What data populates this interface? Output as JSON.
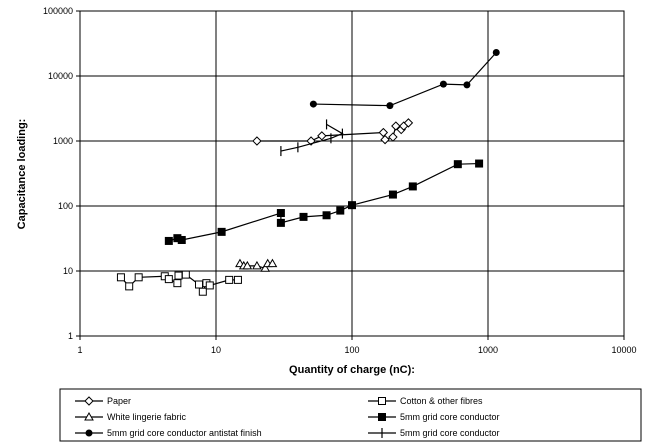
{
  "chart_data": {
    "type": "scatter",
    "x_scale": "log",
    "y_scale": "log",
    "xlim": [
      1,
      10000
    ],
    "ylim": [
      1,
      100000
    ],
    "x_ticks": [
      "1",
      "10",
      "100",
      "1000",
      "10000"
    ],
    "y_ticks": [
      "1",
      "10",
      "100",
      "1000",
      "10000",
      "100000"
    ],
    "xlabel": "Quantity of charge (nC):",
    "ylabel": "Capacitance loading:",
    "grid": "major",
    "legend_position": "bottom",
    "series": [
      {
        "name": "Paper",
        "marker": "diamond-open",
        "color": "#000000",
        "points": [
          [
            20,
            1000
          ],
          [
            50,
            1000
          ],
          [
            60,
            1200
          ],
          [
            170,
            1350
          ],
          [
            175,
            1050
          ],
          [
            200,
            1150
          ],
          [
            210,
            1700
          ],
          [
            230,
            1500
          ],
          [
            240,
            1700
          ],
          [
            260,
            1900
          ]
        ]
      },
      {
        "name": "Cotton & other fibres",
        "marker": "square-open",
        "color": "#000000",
        "points": [
          [
            2,
            8
          ],
          [
            2.3,
            5.8
          ],
          [
            2.7,
            8
          ],
          [
            4.2,
            8.3
          ],
          [
            4.5,
            7.5
          ],
          [
            5.2,
            6.5
          ],
          [
            5.3,
            8.5
          ],
          [
            6,
            8.8
          ],
          [
            7.5,
            6.2
          ],
          [
            8,
            4.8
          ],
          [
            8.5,
            6.5
          ],
          [
            9,
            6
          ],
          [
            12.5,
            7.3
          ],
          [
            14.5,
            7.3
          ]
        ]
      },
      {
        "name": "White lingerie fabric",
        "marker": "triangle-open",
        "color": "#000000",
        "points": [
          [
            15,
            13
          ],
          [
            16,
            12
          ],
          [
            17,
            12
          ],
          [
            20,
            12
          ],
          [
            23,
            11
          ],
          [
            24,
            13
          ],
          [
            26,
            13
          ]
        ]
      },
      {
        "name": "5mm grid core conductor",
        "marker": "square-filled",
        "color": "#000000",
        "points": [
          [
            4.5,
            29
          ],
          [
            5.2,
            32
          ],
          [
            5.6,
            30
          ],
          [
            11,
            40
          ],
          [
            30,
            78
          ],
          [
            30,
            55
          ],
          [
            44,
            68
          ],
          [
            65,
            72
          ],
          [
            82,
            85
          ],
          [
            100,
            103
          ],
          [
            200,
            150
          ],
          [
            280,
            200
          ],
          [
            600,
            440
          ],
          [
            860,
            450
          ]
        ]
      },
      {
        "name": "5mm grid core conductor antistat finish",
        "marker": "circle-filled",
        "color": "#000000",
        "points": [
          [
            52,
            3700
          ],
          [
            190,
            3500
          ],
          [
            470,
            7500
          ],
          [
            700,
            7300
          ],
          [
            1150,
            23000
          ]
        ]
      },
      {
        "name": "5mm grid core conductor",
        "marker": "dash",
        "color": "#000000",
        "points": [
          [
            30,
            700
          ],
          [
            40,
            800
          ],
          [
            70,
            1100
          ],
          [
            85,
            1300
          ],
          [
            65,
            1800
          ]
        ]
      }
    ]
  }
}
